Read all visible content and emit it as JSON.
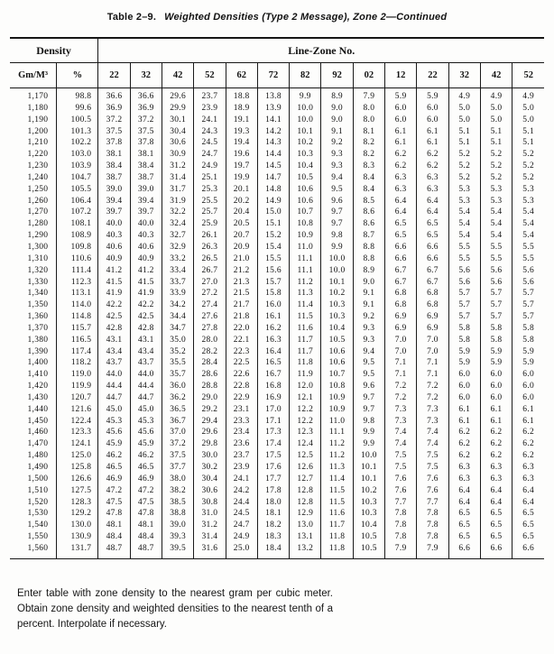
{
  "title": {
    "label": "Table 2–9.",
    "caption": "Weighted Densities (Type 2 Message), Zone 2—Continued"
  },
  "table": {
    "group_headers": {
      "density": "Density",
      "line_zone": "Line-Zone No."
    },
    "density_columns": [
      "Gm/M³",
      "%"
    ],
    "zone_columns": [
      "22",
      "32",
      "42",
      "52",
      "62",
      "72",
      "82",
      "92",
      "02",
      "12",
      "22",
      "32",
      "42",
      "52"
    ],
    "rows": [
      {
        "gm": "1,170",
        "pct": "98.8",
        "values": [
          "36.6",
          "36.6",
          "29.6",
          "23.7",
          "18.8",
          "13.8",
          "9.9",
          "8.9",
          "7.9",
          "5.9",
          "5.9",
          "4.9",
          "4.9",
          "4.9"
        ]
      },
      {
        "gm": "1,180",
        "pct": "99.6",
        "values": [
          "36.9",
          "36.9",
          "29.9",
          "23.9",
          "18.9",
          "13.9",
          "10.0",
          "9.0",
          "8.0",
          "6.0",
          "6.0",
          "5.0",
          "5.0",
          "5.0"
        ]
      },
      {
        "gm": "1,190",
        "pct": "100.5",
        "values": [
          "37.2",
          "37.2",
          "30.1",
          "24.1",
          "19.1",
          "14.1",
          "10.0",
          "9.0",
          "8.0",
          "6.0",
          "6.0",
          "5.0",
          "5.0",
          "5.0"
        ]
      },
      {
        "gm": "1,200",
        "pct": "101.3",
        "values": [
          "37.5",
          "37.5",
          "30.4",
          "24.3",
          "19.3",
          "14.2",
          "10.1",
          "9.1",
          "8.1",
          "6.1",
          "6.1",
          "5.1",
          "5.1",
          "5.1"
        ]
      },
      {
        "gm": "1,210",
        "pct": "102.2",
        "values": [
          "37.8",
          "37.8",
          "30.6",
          "24.5",
          "19.4",
          "14.3",
          "10.2",
          "9.2",
          "8.2",
          "6.1",
          "6.1",
          "5.1",
          "5.1",
          "5.1"
        ]
      },
      {
        "gm": "1,220",
        "pct": "103.0",
        "values": [
          "38.1",
          "38.1",
          "30.9",
          "24.7",
          "19.6",
          "14.4",
          "10.3",
          "9.3",
          "8.2",
          "6.2",
          "6.2",
          "5.2",
          "5.2",
          "5.2"
        ]
      },
      {
        "gm": "1,230",
        "pct": "103.9",
        "values": [
          "38.4",
          "38.4",
          "31.2",
          "24.9",
          "19.7",
          "14.5",
          "10.4",
          "9.3",
          "8.3",
          "6.2",
          "6.2",
          "5.2",
          "5.2",
          "5.2"
        ]
      },
      {
        "gm": "1,240",
        "pct": "104.7",
        "values": [
          "38.7",
          "38.7",
          "31.4",
          "25.1",
          "19.9",
          "14.7",
          "10.5",
          "9.4",
          "8.4",
          "6.3",
          "6.3",
          "5.2",
          "5.2",
          "5.2"
        ]
      },
      {
        "gm": "1,250",
        "pct": "105.5",
        "values": [
          "39.0",
          "39.0",
          "31.7",
          "25.3",
          "20.1",
          "14.8",
          "10.6",
          "9.5",
          "8.4",
          "6.3",
          "6.3",
          "5.3",
          "5.3",
          "5.3"
        ]
      },
      {
        "gm": "1,260",
        "pct": "106.4",
        "values": [
          "39.4",
          "39.4",
          "31.9",
          "25.5",
          "20.2",
          "14.9",
          "10.6",
          "9.6",
          "8.5",
          "6.4",
          "6.4",
          "5.3",
          "5.3",
          "5.3"
        ]
      },
      {
        "gm": "1,270",
        "pct": "107.2",
        "values": [
          "39.7",
          "39.7",
          "32.2",
          "25.7",
          "20.4",
          "15.0",
          "10.7",
          "9.7",
          "8.6",
          "6.4",
          "6.4",
          "5.4",
          "5.4",
          "5.4"
        ]
      },
      {
        "gm": "1,280",
        "pct": "108.1",
        "values": [
          "40.0",
          "40.0",
          "32.4",
          "25.9",
          "20.5",
          "15.1",
          "10.8",
          "9.7",
          "8.6",
          "6.5",
          "6.5",
          "5.4",
          "5.4",
          "5.4"
        ]
      },
      {
        "gm": "1,290",
        "pct": "108.9",
        "values": [
          "40.3",
          "40.3",
          "32.7",
          "26.1",
          "20.7",
          "15.2",
          "10.9",
          "9.8",
          "8.7",
          "6.5",
          "6.5",
          "5.4",
          "5.4",
          "5.4"
        ]
      },
      {
        "gm": "1,300",
        "pct": "109.8",
        "values": [
          "40.6",
          "40.6",
          "32.9",
          "26.3",
          "20.9",
          "15.4",
          "11.0",
          "9.9",
          "8.8",
          "6.6",
          "6.6",
          "5.5",
          "5.5",
          "5.5"
        ]
      },
      {
        "gm": "1,310",
        "pct": "110.6",
        "values": [
          "40.9",
          "40.9",
          "33.2",
          "26.5",
          "21.0",
          "15.5",
          "11.1",
          "10.0",
          "8.8",
          "6.6",
          "6.6",
          "5.5",
          "5.5",
          "5.5"
        ]
      },
      {
        "gm": "1,320",
        "pct": "111.4",
        "values": [
          "41.2",
          "41.2",
          "33.4",
          "26.7",
          "21.2",
          "15.6",
          "11.1",
          "10.0",
          "8.9",
          "6.7",
          "6.7",
          "5.6",
          "5.6",
          "5.6"
        ]
      },
      {
        "gm": "1,330",
        "pct": "112.3",
        "values": [
          "41.5",
          "41.5",
          "33.7",
          "27.0",
          "21.3",
          "15.7",
          "11.2",
          "10.1",
          "9.0",
          "6.7",
          "6.7",
          "5.6",
          "5.6",
          "5.6"
        ]
      },
      {
        "gm": "1,340",
        "pct": "113.1",
        "values": [
          "41.9",
          "41.9",
          "33.9",
          "27.2",
          "21.5",
          "15.8",
          "11.3",
          "10.2",
          "9.1",
          "6.8",
          "6.8",
          "5.7",
          "5.7",
          "5.7"
        ]
      },
      {
        "gm": "1,350",
        "pct": "114.0",
        "values": [
          "42.2",
          "42.2",
          "34.2",
          "27.4",
          "21.7",
          "16.0",
          "11.4",
          "10.3",
          "9.1",
          "6.8",
          "6.8",
          "5.7",
          "5.7",
          "5.7"
        ]
      },
      {
        "gm": "1,360",
        "pct": "114.8",
        "values": [
          "42.5",
          "42.5",
          "34.4",
          "27.6",
          "21.8",
          "16.1",
          "11.5",
          "10.3",
          "9.2",
          "6.9",
          "6.9",
          "5.7",
          "5.7",
          "5.7"
        ]
      },
      {
        "gm": "1,370",
        "pct": "115.7",
        "values": [
          "42.8",
          "42.8",
          "34.7",
          "27.8",
          "22.0",
          "16.2",
          "11.6",
          "10.4",
          "9.3",
          "6.9",
          "6.9",
          "5.8",
          "5.8",
          "5.8"
        ]
      },
      {
        "gm": "1,380",
        "pct": "116.5",
        "values": [
          "43.1",
          "43.1",
          "35.0",
          "28.0",
          "22.1",
          "16.3",
          "11.7",
          "10.5",
          "9.3",
          "7.0",
          "7.0",
          "5.8",
          "5.8",
          "5.8"
        ]
      },
      {
        "gm": "1,390",
        "pct": "117.4",
        "values": [
          "43.4",
          "43.4",
          "35.2",
          "28.2",
          "22.3",
          "16.4",
          "11.7",
          "10.6",
          "9.4",
          "7.0",
          "7.0",
          "5.9",
          "5.9",
          "5.9"
        ]
      },
      {
        "gm": "1,400",
        "pct": "118.2",
        "values": [
          "43.7",
          "43.7",
          "35.5",
          "28.4",
          "22.5",
          "16.5",
          "11.8",
          "10.6",
          "9.5",
          "7.1",
          "7.1",
          "5.9",
          "5.9",
          "5.9"
        ]
      },
      {
        "gm": "1,410",
        "pct": "119.0",
        "values": [
          "44.0",
          "44.0",
          "35.7",
          "28.6",
          "22.6",
          "16.7",
          "11.9",
          "10.7",
          "9.5",
          "7.1",
          "7.1",
          "6.0",
          "6.0",
          "6.0"
        ]
      },
      {
        "gm": "1,420",
        "pct": "119.9",
        "values": [
          "44.4",
          "44.4",
          "36.0",
          "28.8",
          "22.8",
          "16.8",
          "12.0",
          "10.8",
          "9.6",
          "7.2",
          "7.2",
          "6.0",
          "6.0",
          "6.0"
        ]
      },
      {
        "gm": "1,430",
        "pct": "120.7",
        "values": [
          "44.7",
          "44.7",
          "36.2",
          "29.0",
          "22.9",
          "16.9",
          "12.1",
          "10.9",
          "9.7",
          "7.2",
          "7.2",
          "6.0",
          "6.0",
          "6.0"
        ]
      },
      {
        "gm": "1,440",
        "pct": "121.6",
        "values": [
          "45.0",
          "45.0",
          "36.5",
          "29.2",
          "23.1",
          "17.0",
          "12.2",
          "10.9",
          "9.7",
          "7.3",
          "7.3",
          "6.1",
          "6.1",
          "6.1"
        ]
      },
      {
        "gm": "1,450",
        "pct": "122.4",
        "values": [
          "45.3",
          "45.3",
          "36.7",
          "29.4",
          "23.3",
          "17.1",
          "12.2",
          "11.0",
          "9.8",
          "7.3",
          "7.3",
          "6.1",
          "6.1",
          "6.1"
        ]
      },
      {
        "gm": "1,460",
        "pct": "123.3",
        "values": [
          "45.6",
          "45.6",
          "37.0",
          "29.6",
          "23.4",
          "17.3",
          "12.3",
          "11.1",
          "9.9",
          "7.4",
          "7.4",
          "6.2",
          "6.2",
          "6.2"
        ]
      },
      {
        "gm": "1,470",
        "pct": "124.1",
        "values": [
          "45.9",
          "45.9",
          "37.2",
          "29.8",
          "23.6",
          "17.4",
          "12.4",
          "11.2",
          "9.9",
          "7.4",
          "7.4",
          "6.2",
          "6.2",
          "6.2"
        ]
      },
      {
        "gm": "1,480",
        "pct": "125.0",
        "values": [
          "46.2",
          "46.2",
          "37.5",
          "30.0",
          "23.7",
          "17.5",
          "12.5",
          "11.2",
          "10.0",
          "7.5",
          "7.5",
          "6.2",
          "6.2",
          "6.2"
        ]
      },
      {
        "gm": "1,490",
        "pct": "125.8",
        "values": [
          "46.5",
          "46.5",
          "37.7",
          "30.2",
          "23.9",
          "17.6",
          "12.6",
          "11.3",
          "10.1",
          "7.5",
          "7.5",
          "6.3",
          "6.3",
          "6.3"
        ]
      },
      {
        "gm": "1,500",
        "pct": "126.6",
        "values": [
          "46.9",
          "46.9",
          "38.0",
          "30.4",
          "24.1",
          "17.7",
          "12.7",
          "11.4",
          "10.1",
          "7.6",
          "7.6",
          "6.3",
          "6.3",
          "6.3"
        ]
      },
      {
        "gm": "1,510",
        "pct": "127.5",
        "values": [
          "47.2",
          "47.2",
          "38.2",
          "30.6",
          "24.2",
          "17.8",
          "12.8",
          "11.5",
          "10.2",
          "7.6",
          "7.6",
          "6.4",
          "6.4",
          "6.4"
        ]
      },
      {
        "gm": "1,520",
        "pct": "128.3",
        "values": [
          "47.5",
          "47.5",
          "38.5",
          "30.8",
          "24.4",
          "18.0",
          "12.8",
          "11.5",
          "10.3",
          "7.7",
          "7.7",
          "6.4",
          "6.4",
          "6.4"
        ]
      },
      {
        "gm": "1,530",
        "pct": "129.2",
        "values": [
          "47.8",
          "47.8",
          "38.8",
          "31.0",
          "24.5",
          "18.1",
          "12.9",
          "11.6",
          "10.3",
          "7.8",
          "7.8",
          "6.5",
          "6.5",
          "6.5"
        ]
      },
      {
        "gm": "1,540",
        "pct": "130.0",
        "values": [
          "48.1",
          "48.1",
          "39.0",
          "31.2",
          "24.7",
          "18.2",
          "13.0",
          "11.7",
          "10.4",
          "7.8",
          "7.8",
          "6.5",
          "6.5",
          "6.5"
        ]
      },
      {
        "gm": "1,550",
        "pct": "130.9",
        "values": [
          "48.4",
          "48.4",
          "39.3",
          "31.4",
          "24.9",
          "18.3",
          "13.1",
          "11.8",
          "10.5",
          "7.8",
          "7.8",
          "6.5",
          "6.5",
          "6.5"
        ]
      },
      {
        "gm": "1,560",
        "pct": "131.7",
        "values": [
          "48.7",
          "48.7",
          "39.5",
          "31.6",
          "25.0",
          "18.4",
          "13.2",
          "11.8",
          "10.5",
          "7.9",
          "7.9",
          "6.6",
          "6.6",
          "6.6"
        ]
      }
    ]
  },
  "footnote": "Enter table with zone density to the nearest gram per cubic meter. Obtain zone density and weighted densities to the nearest tenth of a percent. Interpolate if necessary."
}
